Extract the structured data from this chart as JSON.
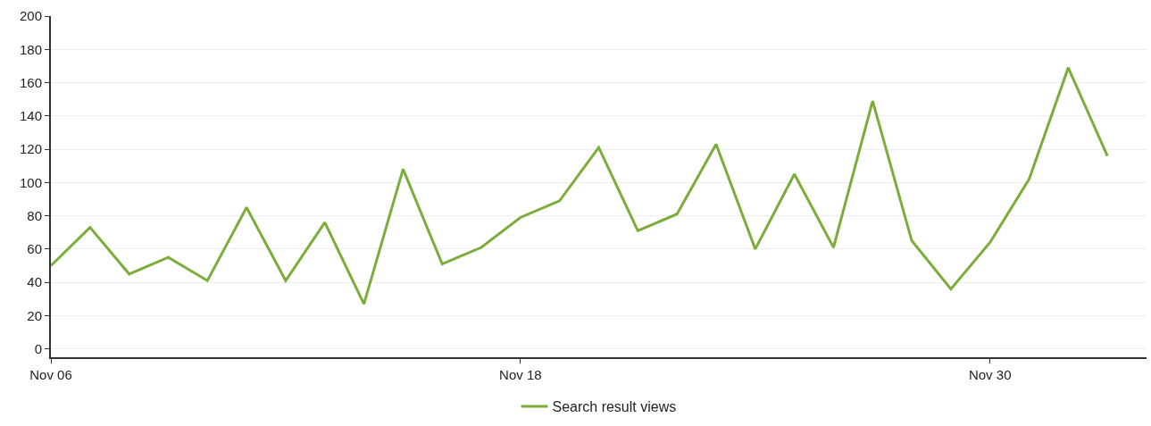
{
  "chart_data": {
    "type": "line",
    "x": [
      "--11-06",
      "--11-07",
      "--11-08",
      "--11-09",
      "--11-10",
      "--11-11",
      "--11-12",
      "--11-13",
      "--11-14",
      "--11-15",
      "--11-16",
      "--11-17",
      "--11-18",
      "--11-19",
      "--11-20",
      "--11-21",
      "--11-22",
      "--11-23",
      "--11-24",
      "--11-25",
      "--11-26",
      "--11-27",
      "--11-28",
      "--11-29",
      "--11-30",
      "--12-01",
      "--12-02",
      "--12-03"
    ],
    "series": [
      {
        "name": "Search result views",
        "color": "#7aad3a",
        "values": [
          50,
          73,
          45,
          55,
          41,
          85,
          41,
          76,
          27,
          108,
          51,
          61,
          79,
          89,
          121,
          71,
          81,
          123,
          60,
          105,
          61,
          149,
          65,
          36,
          64,
          102,
          169,
          116
        ]
      }
    ],
    "xlim": [
      "--11-06",
      "--12-04"
    ],
    "xticks": [
      {
        "value": "--11-06",
        "label": "Nov 06"
      },
      {
        "value": "--11-18",
        "label": "Nov 18"
      },
      {
        "value": "--11-30",
        "label": "Nov 30"
      }
    ],
    "ylim": [
      -5,
      200
    ],
    "yticks": [
      0,
      20,
      40,
      60,
      80,
      100,
      120,
      140,
      160,
      180,
      200
    ],
    "grid": "y",
    "legend": "bottom",
    "marker": "none",
    "line_style": "solid"
  }
}
